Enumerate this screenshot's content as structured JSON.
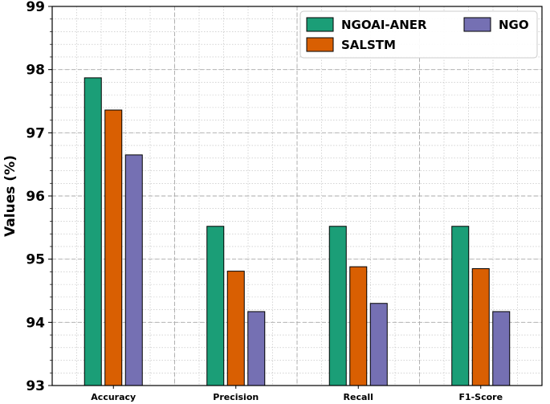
{
  "chart_data": {
    "type": "bar",
    "title": "",
    "xlabel": "",
    "ylabel": "Values (%)",
    "categories": [
      "Accuracy",
      "Precision",
      "Recall",
      "F1-Score"
    ],
    "yticks": [
      "93",
      "94",
      "95",
      "96",
      "97",
      "98",
      "99"
    ],
    "ylim": [
      93,
      99
    ],
    "grid": true,
    "legend_position": "top-right",
    "series": [
      {
        "name": "NGOAI-ANER",
        "color": "#1b9e77",
        "values": [
          97.87,
          95.52,
          95.52,
          95.52
        ]
      },
      {
        "name": "SALSTM",
        "color": "#d95f02",
        "values": [
          97.36,
          94.81,
          94.88,
          94.85
        ]
      },
      {
        "name": "NGO",
        "color": "#7570b3",
        "values": [
          96.65,
          94.17,
          94.3,
          94.17
        ]
      }
    ]
  }
}
